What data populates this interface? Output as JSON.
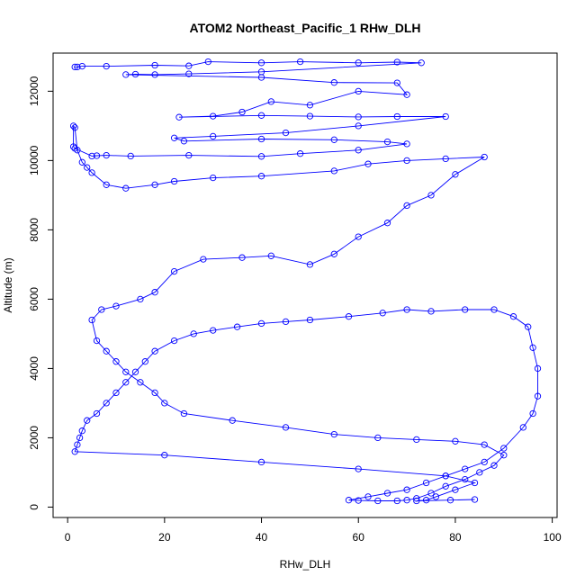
{
  "chart_data": {
    "type": "scatter",
    "title": "ATOM2 Northeast_Pacific_1 RHw_DLH",
    "xlabel": "RHw_DLH",
    "ylabel": "Altitude (m)",
    "xlim": [
      -3,
      101
    ],
    "ylim": [
      -300,
      13100
    ],
    "xticks": [
      0,
      20,
      40,
      60,
      80,
      100
    ],
    "yticks": [
      0,
      2000,
      4000,
      6000,
      8000,
      10000,
      12000
    ],
    "grid": false,
    "color": "#0000ff",
    "marker": "open-circle",
    "connected": true,
    "series": [
      {
        "points": [
          [
            1.5,
            12700
          ],
          [
            2,
            12700
          ],
          [
            3,
            12720
          ],
          [
            8,
            12720
          ],
          [
            18,
            12750
          ],
          [
            25,
            12730
          ],
          [
            29,
            12850
          ],
          [
            40,
            12820
          ],
          [
            48,
            12850
          ],
          [
            60,
            12820
          ],
          [
            68,
            12840
          ],
          [
            73,
            12820
          ],
          [
            40,
            12560
          ],
          [
            25,
            12500
          ],
          [
            18,
            12480
          ],
          [
            14,
            12490
          ],
          [
            12,
            12480
          ],
          [
            40,
            12400
          ],
          [
            55,
            12250
          ],
          [
            68,
            12240
          ],
          [
            70,
            11900
          ],
          [
            60,
            12000
          ],
          [
            50,
            11600
          ],
          [
            42,
            11700
          ],
          [
            36,
            11400
          ],
          [
            30,
            11280
          ],
          [
            23,
            11250
          ],
          [
            40,
            11300
          ],
          [
            50,
            11280
          ],
          [
            60,
            11260
          ],
          [
            68,
            11270
          ],
          [
            78,
            11270
          ],
          [
            60,
            11000
          ],
          [
            45,
            10800
          ],
          [
            30,
            10700
          ],
          [
            22,
            10650
          ],
          [
            24,
            10560
          ],
          [
            40,
            10620
          ],
          [
            55,
            10600
          ],
          [
            66,
            10540
          ],
          [
            70,
            10480
          ],
          [
            60,
            10300
          ],
          [
            48,
            10200
          ],
          [
            40,
            10120
          ],
          [
            25,
            10150
          ],
          [
            13,
            10130
          ],
          [
            8,
            10150
          ],
          [
            6,
            10140
          ],
          [
            5,
            10130
          ],
          [
            1.5,
            10350
          ],
          [
            1.2,
            10400
          ],
          [
            1.2,
            11000
          ],
          [
            1.5,
            10950
          ],
          [
            2,
            10300
          ],
          [
            3,
            9950
          ],
          [
            4,
            9800
          ],
          [
            5,
            9650
          ],
          [
            8,
            9300
          ],
          [
            12,
            9200
          ],
          [
            18,
            9300
          ],
          [
            22,
            9400
          ],
          [
            30,
            9500
          ],
          [
            40,
            9550
          ],
          [
            55,
            9700
          ],
          [
            62,
            9900
          ],
          [
            70,
            10000
          ],
          [
            78,
            10050
          ],
          [
            86,
            10100
          ],
          [
            80,
            9600
          ],
          [
            75,
            9000
          ],
          [
            70,
            8700
          ],
          [
            66,
            8200
          ],
          [
            60,
            7800
          ],
          [
            55,
            7300
          ],
          [
            50,
            7000
          ],
          [
            42,
            7250
          ],
          [
            36,
            7200
          ],
          [
            28,
            7150
          ],
          [
            22,
            6800
          ],
          [
            18,
            6200
          ],
          [
            15,
            6000
          ],
          [
            10,
            5800
          ],
          [
            7,
            5700
          ],
          [
            5,
            5400
          ],
          [
            6,
            4800
          ],
          [
            8,
            4500
          ],
          [
            10,
            4200
          ],
          [
            12,
            3900
          ],
          [
            15,
            3600
          ],
          [
            18,
            3300
          ],
          [
            20,
            3000
          ],
          [
            24,
            2700
          ],
          [
            34,
            2500
          ],
          [
            45,
            2300
          ],
          [
            55,
            2100
          ],
          [
            64,
            2000
          ],
          [
            72,
            1950
          ],
          [
            80,
            1900
          ],
          [
            86,
            1800
          ],
          [
            90,
            1500
          ],
          [
            88,
            1200
          ],
          [
            85,
            1000
          ],
          [
            82,
            800
          ],
          [
            78,
            600
          ],
          [
            75,
            400
          ],
          [
            72,
            250
          ],
          [
            70,
            200
          ],
          [
            68,
            180
          ],
          [
            64,
            180
          ],
          [
            60,
            190
          ],
          [
            58,
            200
          ],
          [
            62,
            300
          ],
          [
            66,
            400
          ],
          [
            70,
            500
          ],
          [
            74,
            700
          ],
          [
            78,
            900
          ],
          [
            82,
            1100
          ],
          [
            86,
            1300
          ],
          [
            90,
            1700
          ],
          [
            94,
            2300
          ],
          [
            96,
            2700
          ],
          [
            97,
            3200
          ],
          [
            97,
            4000
          ],
          [
            96,
            4600
          ],
          [
            95,
            5200
          ],
          [
            92,
            5500
          ],
          [
            88,
            5700
          ],
          [
            82,
            5700
          ],
          [
            75,
            5650
          ],
          [
            70,
            5700
          ],
          [
            65,
            5600
          ],
          [
            58,
            5500
          ],
          [
            50,
            5400
          ],
          [
            45,
            5350
          ],
          [
            40,
            5300
          ],
          [
            35,
            5200
          ],
          [
            30,
            5100
          ],
          [
            26,
            5000
          ],
          [
            22,
            4800
          ],
          [
            18,
            4500
          ],
          [
            16,
            4200
          ],
          [
            14,
            3900
          ],
          [
            12,
            3600
          ],
          [
            10,
            3300
          ],
          [
            8,
            3000
          ],
          [
            6,
            2700
          ],
          [
            4,
            2500
          ],
          [
            3,
            2200
          ],
          [
            2.5,
            2000
          ],
          [
            2,
            1800
          ],
          [
            1.5,
            1600
          ],
          [
            20,
            1500
          ],
          [
            40,
            1300
          ],
          [
            60,
            1100
          ],
          [
            78,
            900
          ],
          [
            84,
            700
          ],
          [
            80,
            500
          ],
          [
            76,
            300
          ],
          [
            74,
            200
          ],
          [
            72,
            180
          ],
          [
            79,
            200
          ],
          [
            84,
            220
          ]
        ]
      }
    ]
  }
}
